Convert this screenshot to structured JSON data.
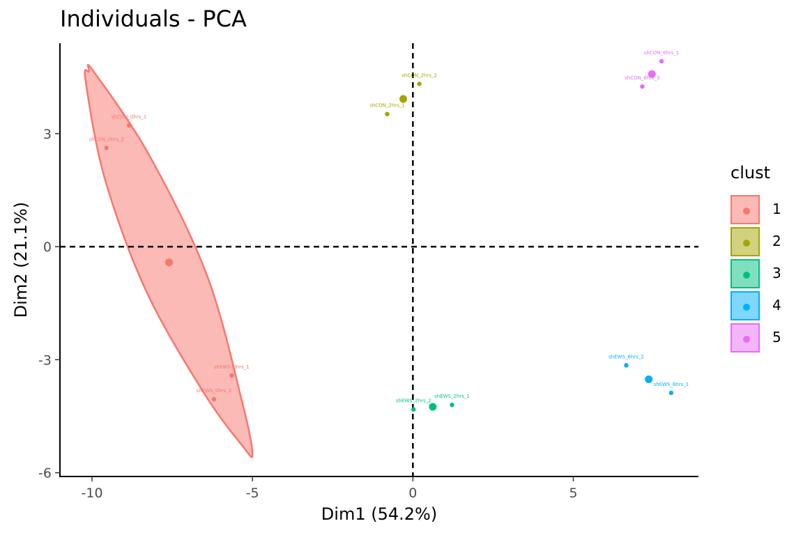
{
  "chart_data": {
    "type": "scatter",
    "title": "Individuals - PCA",
    "xlabel": "Dim1 (54.2%)",
    "ylabel": "Dim2 (21.1%)",
    "xlim": [
      -11.0,
      8.9
    ],
    "ylim": [
      -6.1,
      5.4
    ],
    "xticks": [
      -10,
      -5,
      0,
      5
    ],
    "xtick_labels": [
      "-10",
      "-5",
      "0",
      "5"
    ],
    "yticks": [
      3,
      0,
      -3,
      -6
    ],
    "ytick_labels": [
      "3",
      "0",
      "-3",
      "-6"
    ],
    "grid": false,
    "reference_lines": [
      {
        "axis": "x",
        "value": 0,
        "style": "dashed"
      },
      {
        "axis": "y",
        "value": 0,
        "style": "dashed"
      }
    ],
    "legend": {
      "title": "clust",
      "placement": "right"
    },
    "ellipse": {
      "cluster": "1",
      "points": [
        [
          -10.1,
          4.65
        ],
        [
          -9.95,
          4.65
        ],
        [
          -8.2,
          2.4
        ],
        [
          -6.4,
          -0.8
        ],
        [
          -5.3,
          -4.2
        ],
        [
          -5.0,
          -5.5
        ],
        [
          -5.3,
          -5.3
        ],
        [
          -6.5,
          -3.9
        ],
        [
          -8.3,
          -1.2
        ],
        [
          -9.6,
          1.8
        ],
        [
          -10.2,
          4.4
        ]
      ]
    },
    "series": [
      {
        "name": "1",
        "color": "#F8766D",
        "centroid": [
          -7.6,
          -0.42
        ],
        "points": [
          {
            "label": "shCON_0hrs_1",
            "x": -8.85,
            "y": 3.22
          },
          {
            "label": "shCON_0hrs_2",
            "x": -9.55,
            "y": 2.62
          },
          {
            "label": "shEWS_0hrs_1",
            "x": -5.65,
            "y": -3.42
          },
          {
            "label": "shEWS_0hrs_2",
            "x": -6.2,
            "y": -4.05
          }
        ]
      },
      {
        "name": "2",
        "color": "#A3A500",
        "centroid": [
          -0.3,
          3.92
        ],
        "points": [
          {
            "label": "shCON_2hrs_2",
            "x": 0.2,
            "y": 4.32
          },
          {
            "label": "shCON_2hrs_1",
            "x": -0.8,
            "y": 3.52
          }
        ]
      },
      {
        "name": "3",
        "color": "#00BF7D",
        "centroid": [
          0.62,
          -4.25
        ],
        "points": [
          {
            "label": "shEWS_2hrs_1",
            "x": 1.22,
            "y": -4.2
          },
          {
            "label": "shEWS_2hrs_2",
            "x": 0.02,
            "y": -4.32
          }
        ]
      },
      {
        "name": "4",
        "color": "#00B0F6",
        "centroid": [
          7.35,
          -3.52
        ],
        "points": [
          {
            "label": "shEWS_6hrs_2",
            "x": 6.65,
            "y": -3.15
          },
          {
            "label": "shEWS_6hrs_1",
            "x": 8.05,
            "y": -3.88
          }
        ]
      },
      {
        "name": "5",
        "color": "#E76BF3",
        "centroid": [
          7.45,
          4.58
        ],
        "points": [
          {
            "label": "shCON_6hrs_1",
            "x": 7.75,
            "y": 4.92
          },
          {
            "label": "shCON_6hrs_2",
            "x": 7.15,
            "y": 4.25
          }
        ]
      }
    ]
  }
}
